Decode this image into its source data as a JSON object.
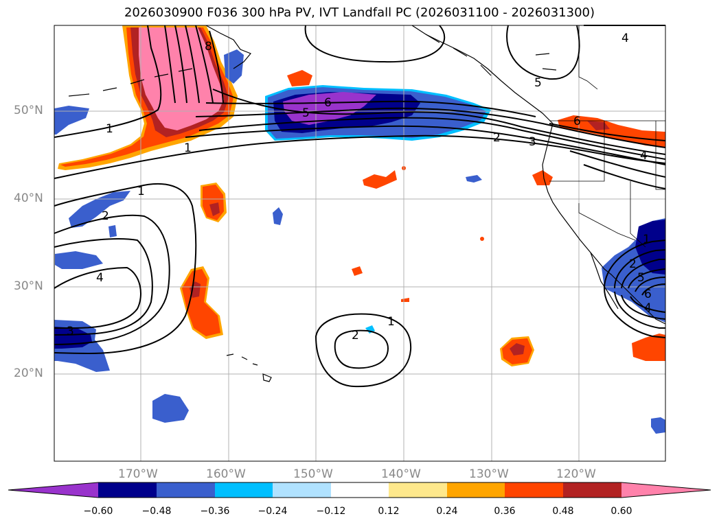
{
  "title": "2026030900 F036 300 hPa PV, IVT Landfall PC (2026031100 - 2026031300)",
  "lat_labels": [
    "50°N",
    "40°N",
    "30°N",
    "20°N"
  ],
  "lon_labels": [
    "170°W",
    "160°W",
    "150°W",
    "140°W",
    "130°W",
    "120°W"
  ],
  "contour_labels": {
    "northwest_1": "1",
    "jet_1": "1",
    "jet_5": "5",
    "jet_6": "6",
    "jet_2": "2",
    "jet_3": "3",
    "jet_6_east": "6",
    "jet_4_east": "4",
    "north_4": "4",
    "north_5": "5",
    "north_8": "8",
    "west_1": "1",
    "west_2": "2",
    "west_4": "4",
    "west_3": "3",
    "low_1": "1",
    "low_2": "2",
    "east_1": "1",
    "east_2": "2",
    "east_5": "5",
    "east_6": "6",
    "east_4": "4"
  },
  "colorbar": {
    "ticks": [
      "−0.60",
      "−0.48",
      "−0.36",
      "−0.24",
      "−0.12",
      "0.12",
      "0.24",
      "0.36",
      "0.48",
      "0.60"
    ],
    "colors": [
      "#9933cc",
      "#00008b",
      "#3a5fcd",
      "#00bfff",
      "#b0e2ff",
      "#ffffff",
      "#fee88c",
      "#ffa500",
      "#ff4500",
      "#b22222",
      "#ff82ab"
    ]
  },
  "palette": {
    "pos_light": "#fee88c",
    "pos_mid": "#ffa500",
    "pos_high": "#ff4500",
    "pos_higher": "#b22222",
    "pos_max": "#ff82ab",
    "neg_light": "#b0e2ff",
    "neg_mid": "#00bfff",
    "neg_high": "#3a5fcd",
    "neg_higher": "#00008b",
    "neg_max": "#9933cc"
  }
}
